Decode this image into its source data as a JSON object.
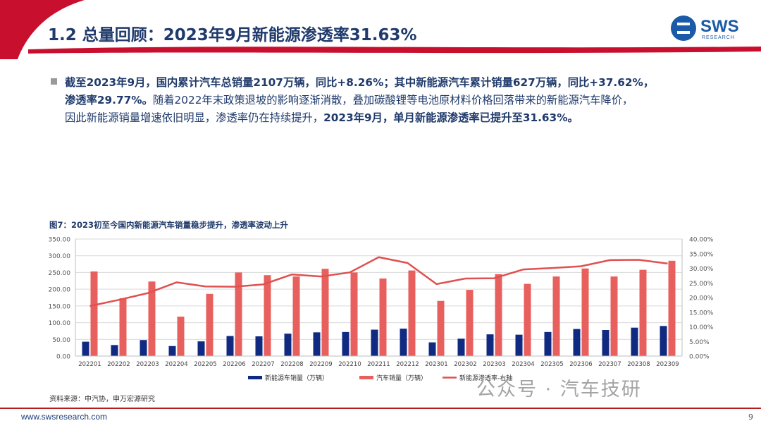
{
  "header": {
    "title": "1.2 总量回顾：2023年9月新能源渗透率31.63%",
    "logo_text": "SWS",
    "logo_sub": "RESEARCH"
  },
  "summary": {
    "p1": "截至2023年9月，国内累计汽车总销量2107万辆，同比+8.26%；其中新能源汽车累计销量627万辆，同比+37.62%，",
    "p2a": "渗透率29.77%。",
    "p2b": "随着2022年末政策退坡的影响逐渐消散，叠加碳酸锂等电池原材料价格回落带来的新能源汽车降价，",
    "p3a": "因此新能源销量增速依旧明显，渗透率仍在持续提升，",
    "p3b": "2023年9月，单月新能源渗透率已提升至31.63%。"
  },
  "figure": {
    "title": "图7：2023初至今国内新能源汽车销量稳步提升，渗透率波动上升",
    "source": "资料来源：中汽协，申万宏源研究"
  },
  "footer": {
    "url": "www.swsresearch.com",
    "page": "9",
    "watermark": "公众号 · 汽车技研"
  },
  "colors": {
    "nev_bar": "#0f2a80",
    "car_bar": "#e8605d",
    "line": "#e05050",
    "title": "#1f3a6b",
    "brand_red": "#c8102e"
  },
  "chart_data": {
    "type": "bar",
    "categories": [
      "202201",
      "202202",
      "202203",
      "202204",
      "202205",
      "202206",
      "202207",
      "202208",
      "202209",
      "202210",
      "202211",
      "202212",
      "202301",
      "202302",
      "202303",
      "202304",
      "202305",
      "202306",
      "202307",
      "202308",
      "202309"
    ],
    "series": [
      {
        "name": "新能源车销量（万辆）",
        "type": "bar",
        "axis": "left",
        "values": [
          43,
          33,
          48,
          30,
          44,
          60,
          59,
          67,
          71,
          72,
          79,
          82,
          41,
          52,
          65,
          64,
          72,
          81,
          78,
          85,
          90
        ]
      },
      {
        "name": "汽车销量（万辆）",
        "type": "bar",
        "axis": "left",
        "values": [
          253,
          173,
          223,
          118,
          186,
          250,
          242,
          238,
          261,
          250,
          232,
          256,
          165,
          198,
          245,
          216,
          238,
          262,
          238,
          258,
          285
        ]
      },
      {
        "name": "新能源渗透率-右轴",
        "type": "line",
        "axis": "right",
        "values": [
          0.171,
          0.192,
          0.215,
          0.252,
          0.238,
          0.237,
          0.245,
          0.279,
          0.272,
          0.286,
          0.338,
          0.318,
          0.246,
          0.265,
          0.266,
          0.296,
          0.301,
          0.307,
          0.328,
          0.329,
          0.3163
        ]
      }
    ],
    "y_left": {
      "min": 0,
      "max": 350,
      "step": 50,
      "ticks": [
        "0.00",
        "50.00",
        "100.00",
        "150.00",
        "200.00",
        "250.00",
        "300.00",
        "350.00"
      ]
    },
    "y_right": {
      "min": 0,
      "max": 0.4,
      "step": 0.05,
      "ticks": [
        "0.00%",
        "5.00%",
        "10.00%",
        "15.00%",
        "20.00%",
        "25.00%",
        "30.00%",
        "35.00%",
        "40.00%"
      ]
    },
    "legend": [
      {
        "label": "新能源车销量（万辆）",
        "kind": "bar"
      },
      {
        "label": "汽车销量（万辆）",
        "kind": "bar"
      },
      {
        "label": "新能源渗透率-右轴",
        "kind": "line"
      }
    ],
    "legend_position": "bottom",
    "grid": true
  }
}
